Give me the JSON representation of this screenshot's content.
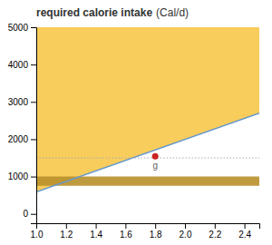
{
  "chart_data": {
    "type": "line",
    "title": "required calorie intake",
    "subtitle": "(Cal/d)",
    "x": [
      1.0,
      2.5
    ],
    "series": [
      {
        "type": "area",
        "color": "#f7c84a",
        "values": [
          5000,
          5000
        ],
        "low": [
          590,
          2700
        ]
      },
      {
        "type": "area",
        "color": "#b8902a",
        "values": [
          1000,
          1000
        ],
        "low": [
          750,
          750
        ]
      },
      {
        "type": "line",
        "color": "#6699cc",
        "values": [
          590,
          2700
        ]
      }
    ],
    "annotations": [
      {
        "type": "hline",
        "y": 1500,
        "color": "#aaaaaa",
        "line_style": "dotted"
      },
      {
        "type": "point",
        "x": 1.8,
        "y": 1540,
        "color": "#cc2222",
        "text": "g"
      }
    ],
    "xlim": [
      1.0,
      2.5
    ],
    "ylim": [
      -250,
      5000
    ],
    "xticks": [
      {
        "value": 1.0,
        "label": "1.0"
      },
      1.2,
      1.4,
      1.6,
      1.8,
      {
        "value": 2.0,
        "label": "2.0"
      },
      2.2,
      2.4
    ],
    "yticks": [
      0,
      1000,
      2000,
      3000,
      4000,
      5000
    ],
    "grid": false
  }
}
